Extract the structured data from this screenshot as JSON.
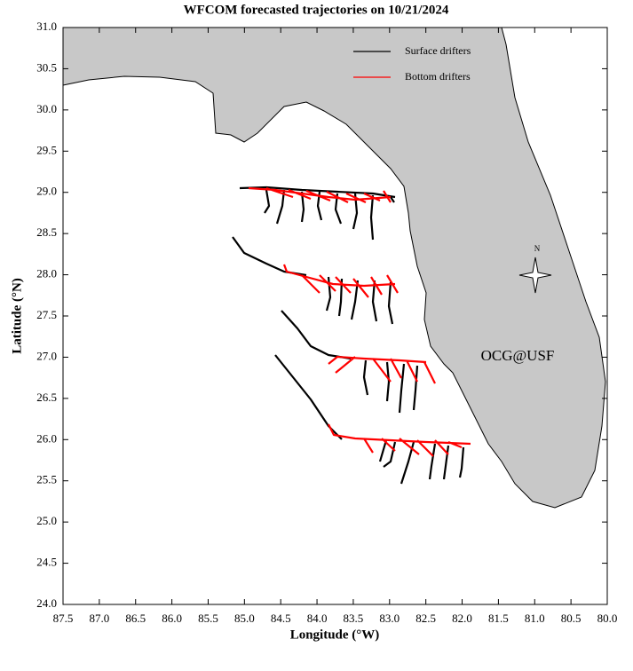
{
  "chart_data": {
    "type": "map",
    "title": "WFCOM forecasted trajectories on 10/21/2024",
    "x_label": "Longitude (°W)",
    "y_label": "Latitude (°N)",
    "xlim": [
      87.5,
      80.0
    ],
    "ylim": [
      24.0,
      31.0
    ],
    "xticks": [
      87.5,
      {
        "value": 87,
        "label": "87.0"
      },
      86.5,
      {
        "value": 86,
        "label": "86.0"
      },
      85.5,
      {
        "value": 85,
        "label": "85.0"
      },
      84.5,
      {
        "value": 84,
        "label": "84.0"
      },
      83.5,
      {
        "value": 83,
        "label": "83.0"
      },
      82.5,
      {
        "value": 82,
        "label": "82.0"
      },
      81.5,
      {
        "value": 81,
        "label": "81.0"
      },
      80.5,
      {
        "value": 80,
        "label": "80.0"
      }
    ],
    "yticks": [
      {
        "value": 24,
        "label": "24.0"
      },
      24.5,
      {
        "value": 25,
        "label": "25.0"
      },
      25.5,
      {
        "value": 26,
        "label": "26.0"
      },
      26.5,
      {
        "value": 27,
        "label": "27.0"
      },
      27.5,
      {
        "value": 28,
        "label": "28.0"
      },
      28.5,
      {
        "value": 29,
        "label": "29.0"
      },
      29.5,
      {
        "value": 30,
        "label": "30.0"
      },
      30.5,
      {
        "value": 31,
        "label": "31.0"
      }
    ],
    "series": [
      {
        "name": "Surface drifters",
        "color": "#000000"
      },
      {
        "name": "Bottom drifters",
        "color": "#ff0000"
      }
    ],
    "land_color": "#c8c8c8",
    "annotations": [
      {
        "text": "OCG@USF",
        "color": "#ff0000"
      },
      {
        "text": "N",
        "color": "#000000"
      }
    ]
  }
}
